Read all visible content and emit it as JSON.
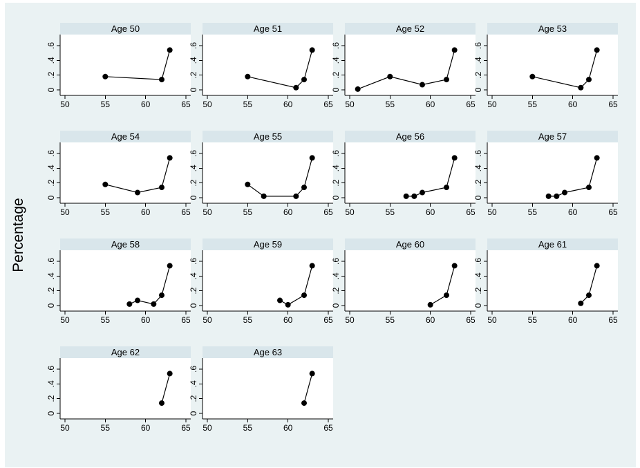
{
  "chart_data": {
    "type": "scatter",
    "subtype": "connected-scatter-small-multiples",
    "ylabel": "Percentage",
    "xlabel": "",
    "xlim": [
      50,
      65
    ],
    "ylim": [
      0,
      0.6
    ],
    "xticks": [
      "50",
      "55",
      "60",
      "65"
    ],
    "yticks": [
      "0",
      ".2",
      ".4",
      ".6"
    ],
    "grid": false,
    "panels": [
      {
        "title": "Age 50",
        "points": [
          [
            55,
            0.18
          ],
          [
            62,
            0.14
          ],
          [
            63,
            0.54
          ]
        ]
      },
      {
        "title": "Age 51",
        "points": [
          [
            55,
            0.18
          ],
          [
            61,
            0.03
          ],
          [
            62,
            0.14
          ],
          [
            63,
            0.54
          ]
        ]
      },
      {
        "title": "Age 52",
        "points": [
          [
            51,
            0.01
          ],
          [
            55,
            0.18
          ],
          [
            59,
            0.07
          ],
          [
            62,
            0.14
          ],
          [
            63,
            0.54
          ]
        ]
      },
      {
        "title": "Age 53",
        "points": [
          [
            55,
            0.18
          ],
          [
            61,
            0.03
          ],
          [
            62,
            0.14
          ],
          [
            63,
            0.54
          ]
        ]
      },
      {
        "title": "Age 54",
        "points": [
          [
            55,
            0.18
          ],
          [
            59,
            0.07
          ],
          [
            62,
            0.14
          ],
          [
            63,
            0.54
          ]
        ]
      },
      {
        "title": "Age 55",
        "points": [
          [
            55,
            0.18
          ],
          [
            57,
            0.02
          ],
          [
            61,
            0.02
          ],
          [
            62,
            0.14
          ],
          [
            63,
            0.54
          ]
        ]
      },
      {
        "title": "Age 56",
        "points": [
          [
            57,
            0.02
          ],
          [
            58,
            0.02
          ],
          [
            59,
            0.07
          ],
          [
            62,
            0.14
          ],
          [
            63,
            0.54
          ]
        ]
      },
      {
        "title": "Age 57",
        "points": [
          [
            57,
            0.02
          ],
          [
            58,
            0.02
          ],
          [
            59,
            0.07
          ],
          [
            62,
            0.14
          ],
          [
            63,
            0.54
          ]
        ]
      },
      {
        "title": "Age 58",
        "points": [
          [
            58,
            0.02
          ],
          [
            59,
            0.07
          ],
          [
            61,
            0.02
          ],
          [
            62,
            0.14
          ],
          [
            63,
            0.54
          ]
        ]
      },
      {
        "title": "Age 59",
        "points": [
          [
            59,
            0.07
          ],
          [
            60,
            0.01
          ],
          [
            62,
            0.14
          ],
          [
            63,
            0.54
          ]
        ]
      },
      {
        "title": "Age 60",
        "points": [
          [
            60,
            0.01
          ],
          [
            62,
            0.14
          ],
          [
            63,
            0.54
          ]
        ]
      },
      {
        "title": "Age 61",
        "points": [
          [
            61,
            0.03
          ],
          [
            62,
            0.14
          ],
          [
            63,
            0.54
          ]
        ]
      },
      {
        "title": "Age 62",
        "points": [
          [
            62,
            0.14
          ],
          [
            63,
            0.54
          ]
        ]
      },
      {
        "title": "Age 63",
        "points": [
          [
            62,
            0.14
          ],
          [
            63,
            0.54
          ]
        ]
      }
    ]
  },
  "colors": {
    "figure_background": "#eaf2f3",
    "strip_background": "#d9e6eb",
    "plot_background": "#ffffff",
    "series": "#000000"
  }
}
